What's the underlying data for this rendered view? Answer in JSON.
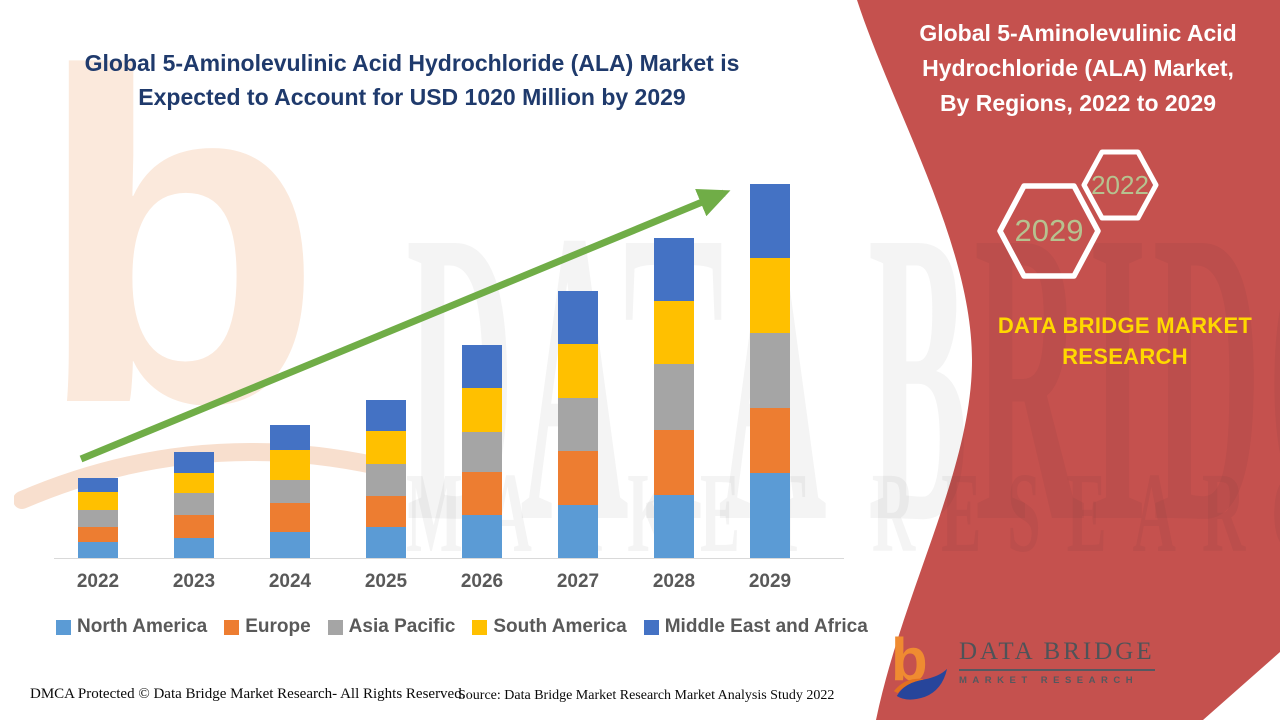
{
  "header": {
    "left_title": "Global 5-Aminolevulinic Acid Hydrochloride (ALA) Market is\nExpected to Account for USD 1020 Million by 2029",
    "right_panel_title": "Global 5-Aminolevulinic Acid\nHydrochloride (ALA) Market,\nBy Regions, 2022 to 2029"
  },
  "chart_data": {
    "type": "bar",
    "stacked": true,
    "title": "Global 5-Aminolevulinic Acid Hydrochloride (ALA) Market is Expected to Account for USD 1020 Million by 2029",
    "value_unit": "USD Million",
    "categories": [
      "2022",
      "2023",
      "2024",
      "2025",
      "2026",
      "2027",
      "2028",
      "2029"
    ],
    "series": [
      {
        "name": "North America",
        "color": "#5B9BD5",
        "values": [
          44,
          55,
          71,
          85,
          117,
          145,
          172,
          232
        ]
      },
      {
        "name": "Europe",
        "color": "#ED7D31",
        "values": [
          41,
          63,
          79,
          85,
          117,
          147,
          177,
          177
        ]
      },
      {
        "name": "Asia Pacific",
        "color": "#A5A5A5",
        "values": [
          46,
          60,
          63,
          87,
          109,
          145,
          180,
          205
        ]
      },
      {
        "name": "South America",
        "color": "#FFC000",
        "values": [
          49,
          55,
          82,
          90,
          120,
          147,
          172,
          205
        ]
      },
      {
        "name": "Middle East and Africa",
        "color": "#4472C4",
        "values": [
          38,
          57,
          68,
          85,
          117,
          145,
          172,
          201
        ]
      }
    ],
    "totals_estimated": [
      218,
      290,
      363,
      432,
      580,
      729,
      873,
      1020
    ],
    "ylim": [
      0,
      1020
    ],
    "grid": false,
    "legend_position": "bottom",
    "annotation": "green upward trend arrow from 2022 to 2029"
  },
  "right_panel": {
    "hexagons": [
      {
        "label": "2029"
      },
      {
        "label": "2022"
      }
    ],
    "brand_text": "DATA BRIDGE MARKET\nRESEARCH",
    "logo": {
      "name": "DATA BRIDGE",
      "subtitle": "MARKET RESEARCH"
    }
  },
  "watermarks": {
    "logo_letter": "b",
    "big_text": "DATA BRIDGE",
    "sub_text": "MARKET RESEARCH"
  },
  "footer": {
    "dmca": "DMCA Protected © Data Bridge Market Research- All Rights Reserved.",
    "source": "Source: Data Bridge Market Research Market Analysis Study 2022"
  },
  "colors": {
    "panel_red": "#C5514E",
    "title_navy": "#1F3A6C",
    "arrow_green": "#70AD47",
    "hex_year_green": "#B6C28F",
    "brand_yellow": "#FFD800",
    "axis_text_gray": "#595959",
    "axis_line_gray": "#D9D9D9",
    "logo_orange": "#EF8B31",
    "logo_blue": "#27459B",
    "logo_text_gray": "#4F5358",
    "watermark_peach": "#FBE9DC"
  }
}
